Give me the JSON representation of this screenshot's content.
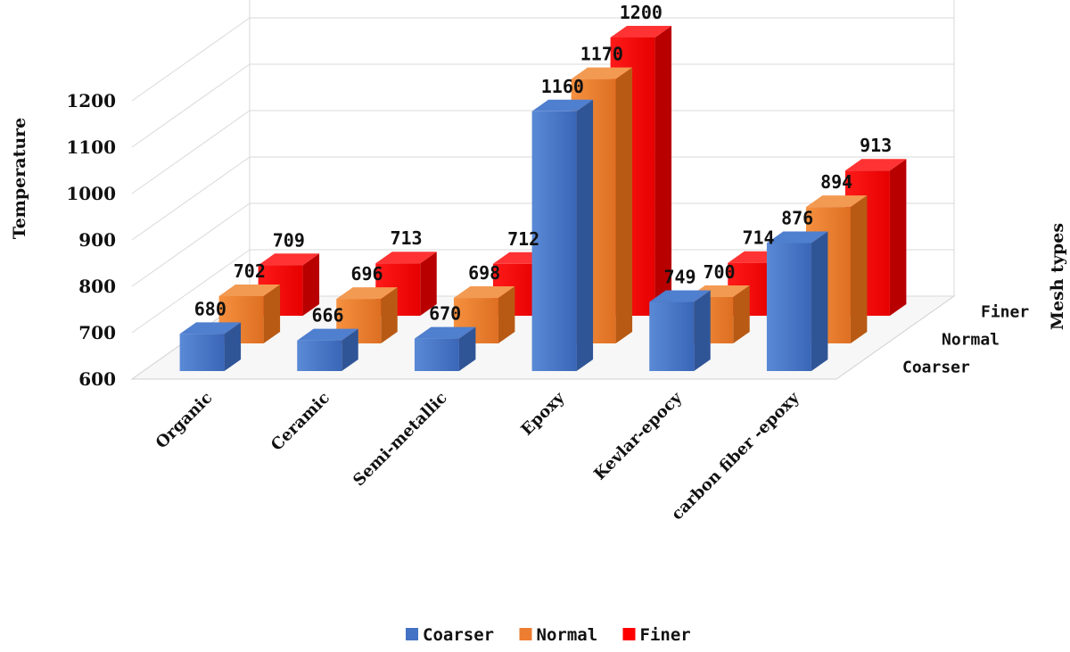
{
  "chart_data": {
    "type": "bar",
    "subtype": "3d-clustered-column",
    "title": "",
    "xlabel": "",
    "ylabel": "Temperature",
    "zlabel": "Mesh types",
    "ylim": [
      600,
      1300
    ],
    "yticks": [
      600,
      700,
      800,
      900,
      1000,
      1100,
      1200
    ],
    "grid": true,
    "legend_position": "bottom",
    "categories": [
      "Organic",
      "Ceramic",
      "Semi-metallic",
      "Epoxy",
      "Kevlar-epocy",
      "carbon fiber -epoxy"
    ],
    "series": [
      {
        "name": "Coarser",
        "color": "#4472C4",
        "values": [
          680,
          666,
          670,
          1160,
          749,
          876
        ]
      },
      {
        "name": "Normal",
        "color": "#ED7D31",
        "values": [
          702,
          696,
          698,
          1170,
          700,
          894
        ]
      },
      {
        "name": "Finer",
        "color": "#FF0000",
        "values": [
          709,
          713,
          712,
          1200,
          714,
          913
        ]
      }
    ]
  }
}
